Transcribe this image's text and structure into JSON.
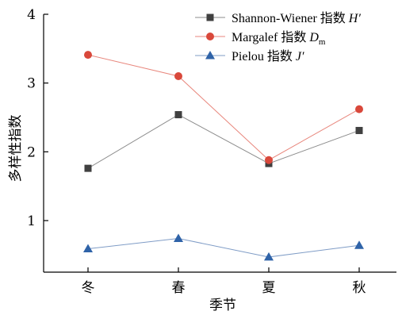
{
  "chart_data": {
    "type": "line",
    "xlabel": "季节",
    "ylabel": "多样性指数",
    "categories": [
      "冬",
      "春",
      "夏",
      "秋"
    ],
    "ylim": [
      0.25,
      4
    ],
    "yticks": [
      1,
      2,
      3,
      4
    ],
    "legend_position": "top-right",
    "grid": false,
    "series": [
      {
        "name": "Shannon-Wiener 指数 H′",
        "label_main": "Shannon-Wiener 指数 ",
        "label_italic": "H′",
        "label_sub": "",
        "color": "#8c8c8c",
        "marker_color": "#404040",
        "marker": "square",
        "values": [
          1.76,
          2.54,
          1.83,
          2.31
        ]
      },
      {
        "name": "Margalef 指数 Dm",
        "label_main": "Margalef 指数 ",
        "label_italic": "D",
        "label_sub": "m",
        "color": "#e8867c",
        "marker_color": "#d9483b",
        "marker": "circle",
        "values": [
          3.41,
          3.1,
          1.88,
          2.62
        ]
      },
      {
        "name": "Pielou 指数 J′",
        "label_main": "Pielou 指数 ",
        "label_italic": "J′",
        "label_sub": "",
        "color": "#7f9cc6",
        "marker_color": "#2f63a8",
        "marker": "triangle",
        "values": [
          0.59,
          0.74,
          0.47,
          0.64
        ]
      }
    ]
  }
}
